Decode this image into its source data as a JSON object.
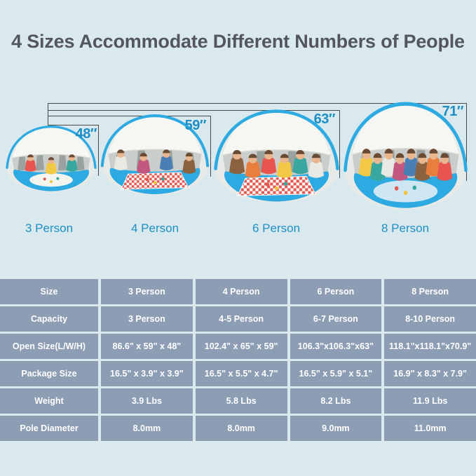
{
  "title": "4 Sizes Accommodate Different Numbers of People",
  "tents": [
    {
      "name": "3 Person",
      "height_label": "48″",
      "people": 3
    },
    {
      "name": "4 Person",
      "height_label": "59″",
      "people": 4
    },
    {
      "name": "6 Person",
      "height_label": "63″",
      "people": 6
    },
    {
      "name": "8 Person",
      "height_label": "71″",
      "people": 8
    }
  ],
  "table": {
    "rows": [
      {
        "label": "Size",
        "values": [
          "3 Person",
          "4 Person",
          "6 Person",
          "8 Person"
        ]
      },
      {
        "label": "Capacity",
        "values": [
          "3 Person",
          "4-5 Person",
          "6-7 Person",
          "8-10 Person"
        ]
      },
      {
        "label": "Open Size(L/W/H)",
        "values": [
          "86.6\" x 59\" x 48\"",
          "102.4\" x 65\" x 59\"",
          "106.3\"x106.3\"x63\"",
          "118.1\"x118.1\"x70.9\""
        ]
      },
      {
        "label": "Package Size",
        "values": [
          "16.5\" x 3.9\" x 3.9\"",
          "16.5\" x 5.5\" x 4.7\"",
          "16.5\" x 5.9\" x 5.1\"",
          "16.9\" x 8.3\" x 7.9\""
        ]
      },
      {
        "label": "Weight",
        "values": [
          "3.9 Lbs",
          "5.8 Lbs",
          "8.2 Lbs",
          "11.9 Lbs"
        ]
      },
      {
        "label": "Pole Diameter",
        "values": [
          "8.0mm",
          "8.0mm",
          "9.0mm",
          "11.0mm"
        ]
      }
    ]
  },
  "colors": {
    "background": "#d9e9ee",
    "title_text": "#53575c",
    "accent_blue": "#1d8fc4",
    "tent_blue": "#2daae1",
    "table_cell": "#8c9db4",
    "table_text": "#ffffff",
    "measure_line": "#4a4a4a"
  }
}
